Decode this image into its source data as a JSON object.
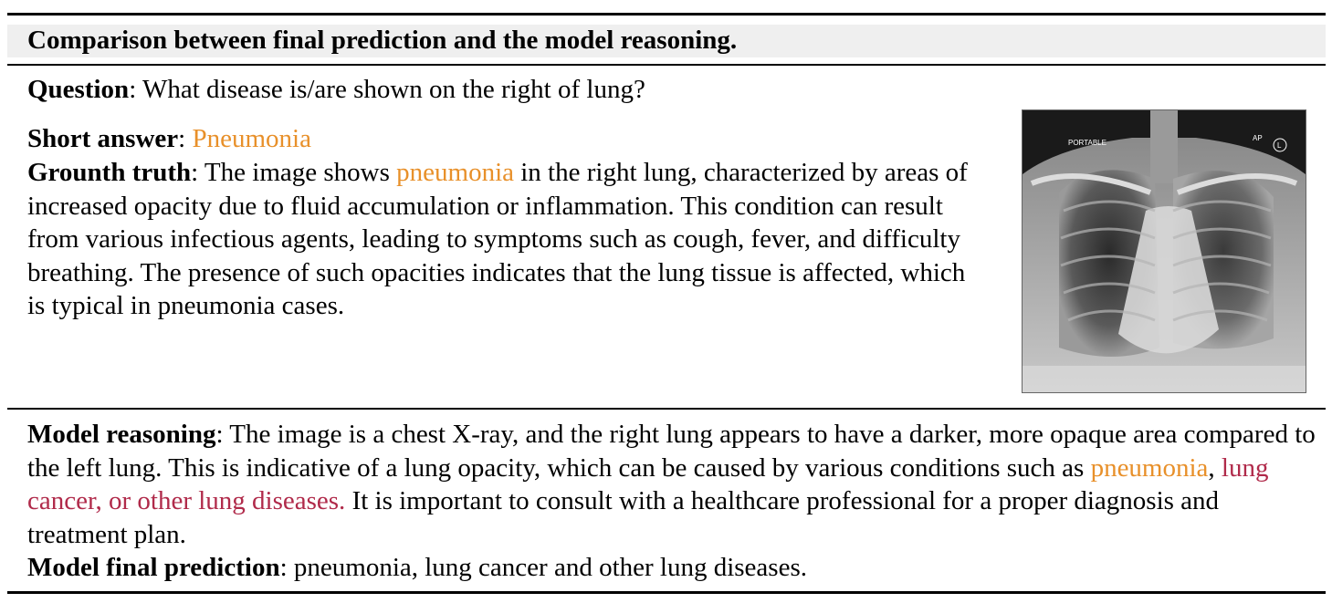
{
  "title": "Comparison between final prediction and the model reasoning.",
  "question": {
    "label": "Question",
    "text": ": What disease is/are shown on the right of lung?"
  },
  "short_answer": {
    "label": "Short answer",
    "sep": ": ",
    "answer": "Pneumonia"
  },
  "ground_truth": {
    "label": "Grounth truth",
    "pre": ": The image shows ",
    "highlight": "pneumonia",
    "post": " in the right lung, characterized by areas of increased opacity due to fluid accumulation or inflammation. This condition can result from various infectious agents, leading to symptoms such as cough, fever, and difficulty breathing. The presence of such opacities indicates that the lung tissue is affected, which is typical in pneumonia cases."
  },
  "xray": {
    "label_left": "PORTABLE",
    "label_right": "AP",
    "marker": "L"
  },
  "model_reasoning": {
    "label": "Model reasoning",
    "pre": ": The image is a chest X-ray, and the right lung appears to have a darker, more opaque area compared to the left lung. This is indicative of a lung opacity, which can be caused by various conditions such as ",
    "highlight1": "pneumonia",
    "comma": ", ",
    "highlight2": "lung cancer, or other lung diseases.",
    "post": " It is important to consult with a healthcare professional for a proper diagnosis and treatment plan."
  },
  "final_prediction": {
    "label": "Model final prediction",
    "text": ": pneumonia, lung cancer and other lung diseases."
  },
  "colors": {
    "answer": "#e8902a",
    "error": "#b02a4a"
  }
}
